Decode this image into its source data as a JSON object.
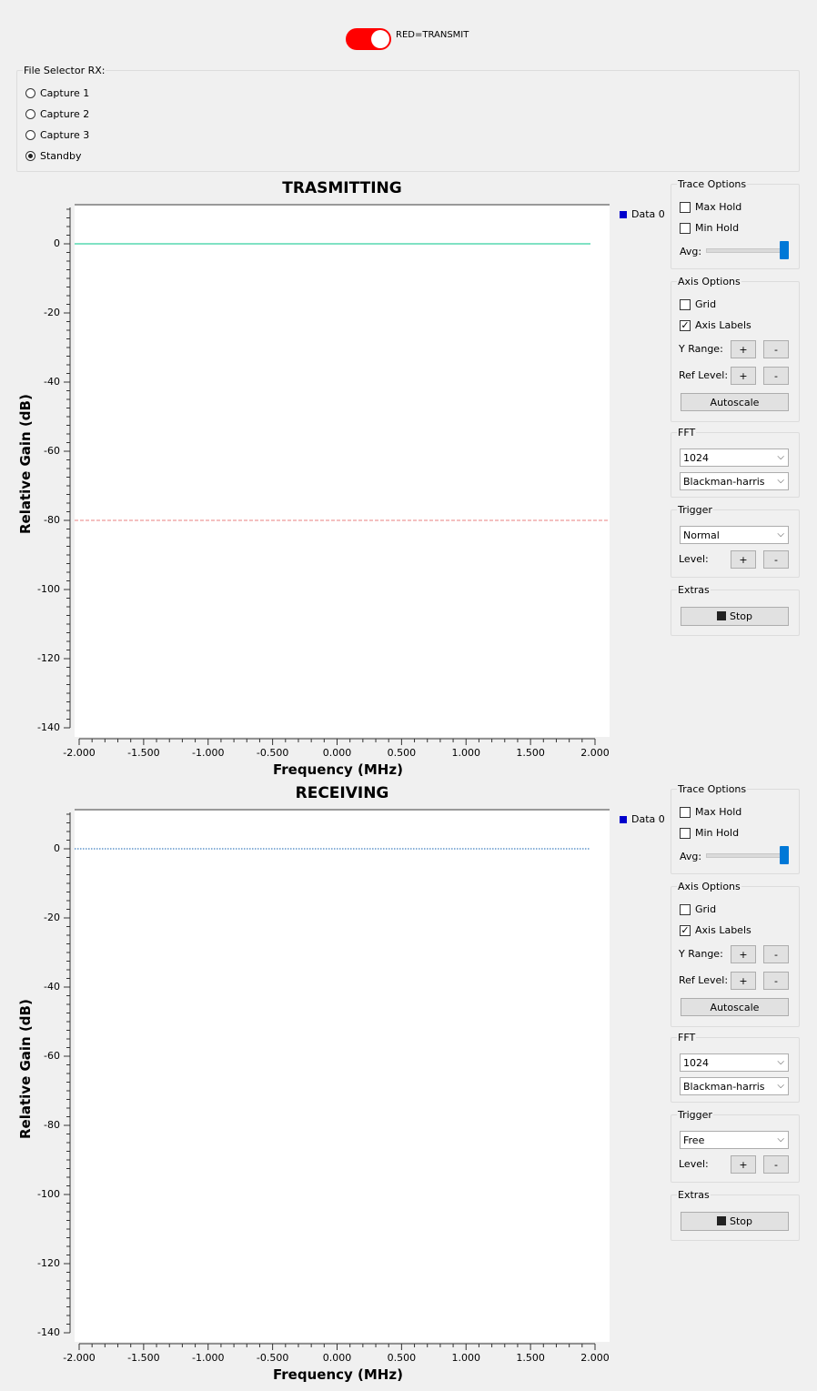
{
  "toggle": {
    "label": "RED=TRANSMIT",
    "color": "#ff0000"
  },
  "file_selector": {
    "title": "File Selector RX:",
    "options": [
      {
        "label": "Capture 1",
        "selected": false
      },
      {
        "label": "Capture 2",
        "selected": false
      },
      {
        "label": "Capture 3",
        "selected": false
      },
      {
        "label": "Standby",
        "selected": true
      }
    ]
  },
  "plots": [
    {
      "title": "TRASMITTING",
      "ylabel": "Relative Gain (dB)",
      "xlabel": "Frequency (MHz)",
      "legend": "Data 0",
      "trace_level_db": 0,
      "trace_color": "#00c48a",
      "trigger_level_db": -80,
      "trigger_color": "#e88080",
      "y_ticks": [
        "0",
        "-20",
        "-40",
        "-60",
        "-80",
        "-100",
        "-120",
        "-140"
      ],
      "x_ticks": [
        "-2.000",
        "-1.500",
        "-1.000",
        "-0.500",
        "0.000",
        "0.500",
        "1.000",
        "1.500",
        "2.000"
      ],
      "controls": {
        "trace_options": "Trace Options",
        "max_hold": "Max Hold",
        "min_hold": "Min Hold",
        "avg": "Avg:",
        "axis_options": "Axis Options",
        "grid": "Grid",
        "axis_labels": "Axis Labels",
        "y_range": "Y Range:",
        "ref_level": "Ref Level:",
        "plus": "+",
        "minus": "-",
        "autoscale": "Autoscale",
        "fft": "FFT",
        "fft_size": "1024",
        "window": "Blackman-harris",
        "trigger": "Trigger",
        "trigger_mode": "Normal",
        "level": "Level:",
        "extras": "Extras",
        "stop": "Stop"
      }
    },
    {
      "title": "RECEIVING",
      "ylabel": "Relative Gain (dB)",
      "xlabel": "Frequency (MHz)",
      "legend": "Data 0",
      "trace_level_db": 0,
      "trace_color": "#1060b0",
      "y_ticks": [
        "0",
        "-20",
        "-40",
        "-60",
        "-80",
        "-100",
        "-120",
        "-140"
      ],
      "x_ticks": [
        "-2.000",
        "-1.500",
        "-1.000",
        "-0.500",
        "0.000",
        "0.500",
        "1.000",
        "1.500",
        "2.000"
      ],
      "controls": {
        "trace_options": "Trace Options",
        "max_hold": "Max Hold",
        "min_hold": "Min Hold",
        "avg": "Avg:",
        "axis_options": "Axis Options",
        "grid": "Grid",
        "axis_labels": "Axis Labels",
        "y_range": "Y Range:",
        "ref_level": "Ref Level:",
        "plus": "+",
        "minus": "-",
        "autoscale": "Autoscale",
        "fft": "FFT",
        "fft_size": "1024",
        "window": "Blackman-harris",
        "trigger": "Trigger",
        "trigger_mode": "Free",
        "level": "Level:",
        "extras": "Extras",
        "stop": "Stop"
      }
    }
  ],
  "chart_data": [
    {
      "type": "line",
      "title": "TRASMITTING",
      "xlabel": "Frequency (MHz)",
      "ylabel": "Relative Gain (dB)",
      "xlim": [
        -2.0,
        2.0
      ],
      "ylim": [
        -140,
        10
      ],
      "grid": false,
      "legend": "top-right",
      "series": [
        {
          "name": "Data 0",
          "x": [
            -2.0,
            2.0
          ],
          "y": [
            0,
            0
          ]
        }
      ],
      "trigger_level": -80
    },
    {
      "type": "line",
      "title": "RECEIVING",
      "xlabel": "Frequency (MHz)",
      "ylabel": "Relative Gain (dB)",
      "xlim": [
        -2.0,
        2.0
      ],
      "ylim": [
        -140,
        10
      ],
      "grid": false,
      "legend": "top-right",
      "series": [
        {
          "name": "Data 0",
          "x": [
            -2.0,
            2.0
          ],
          "y": [
            0,
            0
          ]
        }
      ]
    }
  ]
}
